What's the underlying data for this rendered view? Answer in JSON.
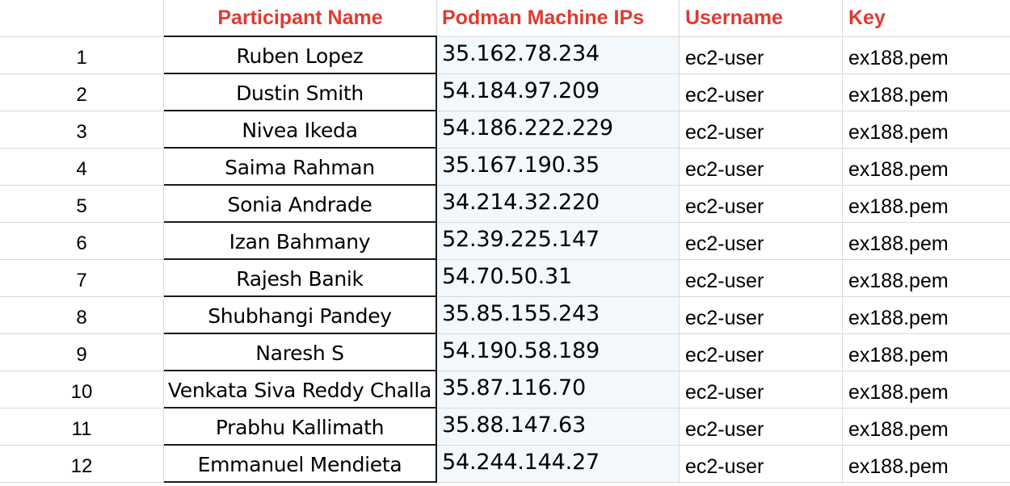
{
  "headers": {
    "num": "",
    "name": "Participant Name",
    "ip": "Podman Machine IPs",
    "user": "Username",
    "key": "Key"
  },
  "rows": [
    {
      "num": "1",
      "name": "Ruben Lopez",
      "ip": "35.162.78.234",
      "user": "ec2-user",
      "key": "ex188.pem"
    },
    {
      "num": "2",
      "name": "Dustin Smith",
      "ip": "54.184.97.209",
      "user": "ec2-user",
      "key": "ex188.pem"
    },
    {
      "num": "3",
      "name": "Nivea Ikeda",
      "ip": "54.186.222.229",
      "user": "ec2-user",
      "key": "ex188.pem"
    },
    {
      "num": "4",
      "name": "Saima Rahman",
      "ip": "35.167.190.35",
      "user": "ec2-user",
      "key": "ex188.pem"
    },
    {
      "num": "5",
      "name": "Sonia Andrade",
      "ip": "34.214.32.220",
      "user": "ec2-user",
      "key": "ex188.pem"
    },
    {
      "num": "6",
      "name": "Izan Bahmany",
      "ip": "52.39.225.147",
      "user": "ec2-user",
      "key": "ex188.pem"
    },
    {
      "num": "7",
      "name": "Rajesh Banik",
      "ip": "54.70.50.31",
      "user": "ec2-user",
      "key": "ex188.pem"
    },
    {
      "num": "8",
      "name": "Shubhangi Pandey",
      "ip": "35.85.155.243",
      "user": "ec2-user",
      "key": "ex188.pem"
    },
    {
      "num": "9",
      "name": "Naresh S",
      "ip": "54.190.58.189",
      "user": "ec2-user",
      "key": "ex188.pem"
    },
    {
      "num": "10",
      "name": "Venkata Siva Reddy Challa",
      "ip": "35.87.116.70",
      "user": "ec2-user",
      "key": "ex188.pem"
    },
    {
      "num": "11",
      "name": "Prabhu Kallimath",
      "ip": "35.88.147.63",
      "user": "ec2-user",
      "key": "ex188.pem"
    },
    {
      "num": "12",
      "name": "Emmanuel Mendieta",
      "ip": "54.244.144.27",
      "user": "ec2-user",
      "key": "ex188.pem"
    }
  ],
  "colors": {
    "header_text": "#e03a2f",
    "ip_column_bg": "#f3f8fd",
    "grid_line": "#d9d9d9"
  }
}
